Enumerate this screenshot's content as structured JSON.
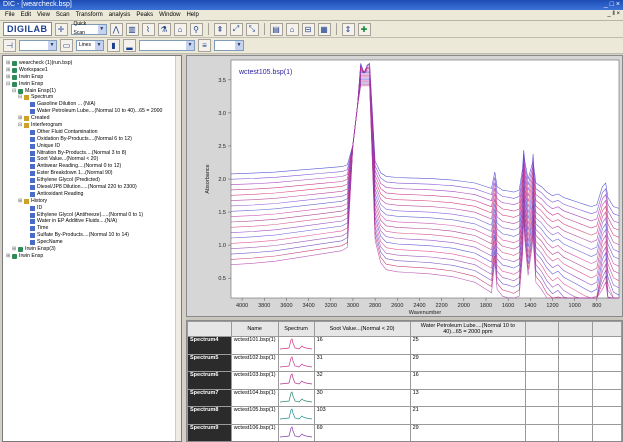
{
  "titlebar": {
    "title": "DIC - [wearcheck.bsp]",
    "window_controls": "_ □ ×",
    "mdi_controls": "_ ‖ ×"
  },
  "menu": [
    "File",
    "Edit",
    "View",
    "Scan",
    "Transform",
    "analysis",
    "Peaks",
    "Window",
    "Help"
  ],
  "toolbar": {
    "logo": "DIGILAB",
    "scan_select": "Quick Scan",
    "icons": [
      "crosshair-icon",
      "peak-icon",
      "library-icon",
      "peak-search-icon",
      "sample-icon",
      "baseline-icon",
      "search-icon",
      "wizard-icon",
      "zoom-in-icon",
      "zoom-out-icon",
      "report-icon",
      "print-icon",
      "fit-icon",
      "add-icon",
      "grid-icon",
      "bars-icon"
    ]
  },
  "toolbar2": {
    "select1": "",
    "select2": "Lines",
    "select3": "",
    "select4": ""
  },
  "tree": {
    "items": [
      {
        "level": 0,
        "pm": "+",
        "icon": "grp",
        "label": "wearcheck (1)(run.bsp)"
      },
      {
        "level": 0,
        "pm": "+",
        "icon": "grp",
        "label": "Workspace1"
      },
      {
        "level": 0,
        "pm": "+",
        "icon": "grp",
        "label": "Irwin Ensp"
      },
      {
        "level": 0,
        "pm": "-",
        "icon": "grp",
        "label": "Irwin Ensp"
      },
      {
        "level": 1,
        "pm": "-",
        "icon": "grp",
        "label": "Main Ensp(1)"
      },
      {
        "level": 2,
        "pm": "-",
        "icon": "fold",
        "label": "Spectrum"
      },
      {
        "level": 3,
        "pm": "",
        "icon": "spec",
        "label": "Gasoline Dilution ... (N/A)"
      },
      {
        "level": 3,
        "pm": "",
        "icon": "spec",
        "label": "Water Petroleum Lube....(Normal 10 to 40)...65 = 2000"
      },
      {
        "level": 2,
        "pm": "+",
        "icon": "fold",
        "label": "Created"
      },
      {
        "level": 2,
        "pm": "-",
        "icon": "fold",
        "label": "Interferogram"
      },
      {
        "level": 3,
        "pm": "",
        "icon": "spec",
        "label": "Other Fluid Contamination"
      },
      {
        "level": 3,
        "pm": "",
        "icon": "spec",
        "label": "Oxidation By-Products....(Normal 6 to 12)"
      },
      {
        "level": 3,
        "pm": "",
        "icon": "spec",
        "label": "Unique ID"
      },
      {
        "level": 3,
        "pm": "",
        "icon": "spec",
        "label": "Nitration By-Products....(Normal 3 to 8)"
      },
      {
        "level": 3,
        "pm": "",
        "icon": "spec",
        "label": "Soot Value...(Normal < 20)"
      },
      {
        "level": 3,
        "pm": "",
        "icon": "spec",
        "label": "Antiwear Reading....(Normal 0 to 12)"
      },
      {
        "level": 3,
        "pm": "",
        "icon": "spec",
        "label": "Ester Breakdown 1...(Normal 90)"
      },
      {
        "level": 3,
        "pm": "",
        "icon": "spec",
        "label": "Ethylene Glycol (Predicted)"
      },
      {
        "level": 3,
        "pm": "",
        "icon": "spec",
        "label": "Diesel/JP8 Dilution.....(Normal 220 to 2300)"
      },
      {
        "level": 3,
        "pm": "",
        "icon": "spec",
        "label": "Antioxidant Reading"
      },
      {
        "level": 2,
        "pm": "+",
        "icon": "fold",
        "label": "History"
      },
      {
        "level": 3,
        "pm": "",
        "icon": "spec",
        "label": "ID"
      },
      {
        "level": 3,
        "pm": "",
        "icon": "spec",
        "label": "Ethylene Glycol (Antifreeze).....(Normal 0 to 1)"
      },
      {
        "level": 3,
        "pm": "",
        "icon": "spec",
        "label": "Water in EP Additive Fluids....(N/A)"
      },
      {
        "level": 3,
        "pm": "",
        "icon": "spec",
        "label": "Time"
      },
      {
        "level": 3,
        "pm": "",
        "icon": "spec",
        "label": "Sulfate By-Products....(Normal 10 to 14)"
      },
      {
        "level": 3,
        "pm": "",
        "icon": "spec",
        "label": "SpecName"
      },
      {
        "level": 1,
        "pm": "+",
        "icon": "grp",
        "label": "Irwin Ensp(3)"
      },
      {
        "level": 0,
        "pm": "+",
        "icon": "grp",
        "label": "Irwin Ensp"
      }
    ]
  },
  "colors": {
    "accent": "#1e4db5",
    "plot_bg": "#ffffff",
    "panel_bg": "#d6d6d6"
  },
  "chart_data": {
    "type": "line",
    "title": "wctest105.bsp(1)",
    "xlabel": "Wavenumber",
    "ylabel": "Absorbance",
    "xlim": [
      4100,
      600
    ],
    "ylim": [
      0.2,
      3.8
    ],
    "x_ticks": [
      4000,
      3800,
      3600,
      3400,
      3200,
      3000,
      2800,
      2600,
      2400,
      2200,
      2000,
      1800,
      1600,
      1400,
      1200,
      1000,
      800
    ],
    "y_ticks": [
      0.5,
      1.0,
      1.5,
      2.0,
      2.5,
      3.0,
      3.5
    ],
    "grid": false,
    "series_count": 18,
    "baseline_range": [
      0.65,
      2.05
    ],
    "peak_max": 3.75,
    "profile_x": [
      4100,
      3900,
      3700,
      3500,
      3300,
      3100,
      3050,
      3000,
      2960,
      2930,
      2900,
      2870,
      2850,
      2800,
      2750,
      2700,
      2600,
      2500,
      2400,
      2300,
      2200,
      2100,
      2000,
      1900,
      1800,
      1750,
      1720,
      1700,
      1650,
      1600,
      1550,
      1500,
      1470,
      1460,
      1450,
      1420,
      1380,
      1375,
      1370,
      1350,
      1300,
      1250,
      1200,
      1150,
      1100,
      1050,
      1000,
      950,
      900,
      850,
      800,
      750,
      720,
      700,
      650,
      600
    ],
    "profile_y": [
      0.05,
      0.07,
      0.1,
      0.15,
      0.2,
      0.25,
      0.3,
      0.5,
      1.0,
      1.75,
      1.45,
      1.55,
      1.7,
      0.4,
      0.08,
      -0.02,
      -0.05,
      -0.06,
      -0.07,
      -0.08,
      -0.1,
      -0.12,
      -0.16,
      -0.2,
      -0.3,
      -0.35,
      0.1,
      -0.3,
      -0.4,
      -0.42,
      -0.45,
      -0.4,
      0.2,
      0.7,
      0.4,
      -0.1,
      0.35,
      0.6,
      0.3,
      -0.2,
      -0.3,
      -0.45,
      -0.55,
      -0.5,
      -0.6,
      -0.65,
      -0.7,
      -0.75,
      -0.8,
      -0.85,
      -0.8,
      -0.3,
      -0.2,
      -0.6,
      -0.85,
      -0.9
    ]
  },
  "table": {
    "headers": [
      "",
      "Name",
      "Spectrum",
      "Soot Value...(Normal < 20)",
      "Water Petroleum Lube....(Normal 10 to 40)...65 = 2000 ppm",
      "",
      "",
      ""
    ],
    "rows": [
      {
        "row": "Spectrum4",
        "name": "wctest101.bsp(1)",
        "soot": "16",
        "water": "25"
      },
      {
        "row": "Spectrum5",
        "name": "wctest102.bsp(1)",
        "soot": "31",
        "water": "29"
      },
      {
        "row": "Spectrum6",
        "name": "wctest103.bsp(1)",
        "soot": "32",
        "water": "16"
      },
      {
        "row": "Spectrum7",
        "name": "wctest104.bsp(1)",
        "soot": "30",
        "water": "13"
      },
      {
        "row": "Spectrum8",
        "name": "wctest105.bsp(1)",
        "soot": "103",
        "water": "21"
      },
      {
        "row": "Spectrum9",
        "name": "wctest106.bsp(1)",
        "soot": "69",
        "water": "29"
      }
    ]
  }
}
